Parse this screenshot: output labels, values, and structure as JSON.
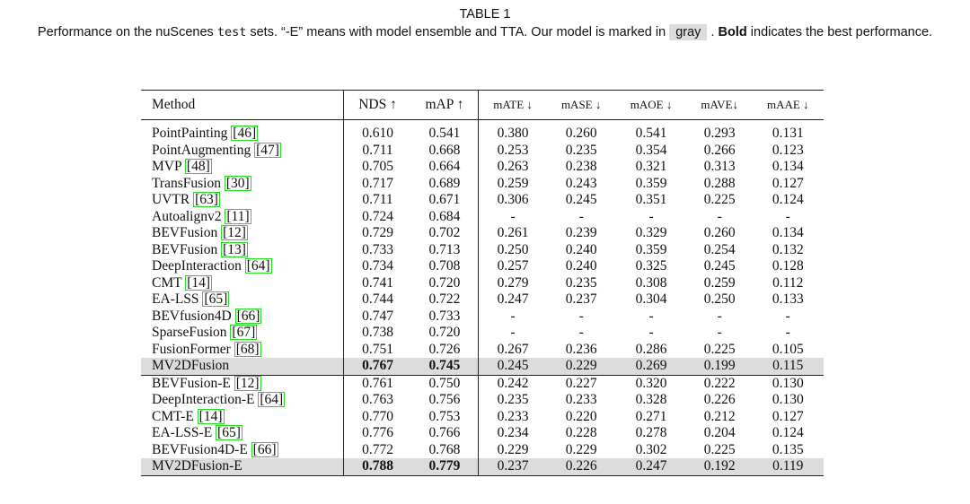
{
  "caption": {
    "title": "TABLE 1",
    "text_before_test": "Performance on the nuScenes ",
    "test_word": "test",
    "text_after_test": " sets. “-E” means with model ensemble and TTA. Our model is marked in ",
    "gray_word": "gray",
    "text_after_gray": " . ",
    "bold_word": "Bold",
    "text_end": " indicates the best performance."
  },
  "table": {
    "headers": [
      "Method",
      "NDS ↑",
      "mAP ↑",
      "mATE ↓",
      "mASE ↓",
      "mAOE ↓",
      "mAVE↓",
      "mAAE ↓"
    ],
    "group1": [
      {
        "name": "PointPainting ",
        "ref": "[46]",
        "values": [
          "0.610",
          "0.541",
          "0.380",
          "0.260",
          "0.541",
          "0.293",
          "0.131"
        ]
      },
      {
        "name": "PointAugmenting ",
        "ref": "[47]",
        "values": [
          "0.711",
          "0.668",
          "0.253",
          "0.235",
          "0.354",
          "0.266",
          "0.123"
        ]
      },
      {
        "name": "MVP ",
        "ref": "[48]",
        "values": [
          "0.705",
          "0.664",
          "0.263",
          "0.238",
          "0.321",
          "0.313",
          "0.134"
        ]
      },
      {
        "name": "TransFusion ",
        "ref": "[30]",
        "values": [
          "0.717",
          "0.689",
          "0.259",
          "0.243",
          "0.359",
          "0.288",
          "0.127"
        ]
      },
      {
        "name": "UVTR ",
        "ref": "[63]",
        "values": [
          "0.711",
          "0.671",
          "0.306",
          "0.245",
          "0.351",
          "0.225",
          "0.124"
        ]
      },
      {
        "name": "Autoalignv2 ",
        "ref": "[11]",
        "values": [
          "0.724",
          "0.684",
          "-",
          "-",
          "-",
          "-",
          "-"
        ]
      },
      {
        "name": "BEVFusion ",
        "ref": "[12]",
        "values": [
          "0.729",
          "0.702",
          "0.261",
          "0.239",
          "0.329",
          "0.260",
          "0.134"
        ]
      },
      {
        "name": "BEVFusion ",
        "ref": "[13]",
        "values": [
          "0.733",
          "0.713",
          "0.250",
          "0.240",
          "0.359",
          "0.254",
          "0.132"
        ]
      },
      {
        "name": "DeepInteraction ",
        "ref": "[64]",
        "values": [
          "0.734",
          "0.708",
          "0.257",
          "0.240",
          "0.325",
          "0.245",
          "0.128"
        ]
      },
      {
        "name": "CMT ",
        "ref": "[14]",
        "values": [
          "0.741",
          "0.720",
          "0.279",
          "0.235",
          "0.308",
          "0.259",
          "0.112"
        ]
      },
      {
        "name": "EA-LSS ",
        "ref": "[65]",
        "values": [
          "0.744",
          "0.722",
          "0.247",
          "0.237",
          "0.304",
          "0.250",
          "0.133"
        ]
      },
      {
        "name": "BEVfusion4D ",
        "ref": "[66]",
        "values": [
          "0.747",
          "0.733",
          "-",
          "-",
          "-",
          "-",
          "-"
        ]
      },
      {
        "name": "SparseFusion ",
        "ref": "[67]",
        "values": [
          "0.738",
          "0.720",
          "-",
          "-",
          "-",
          "-",
          "-"
        ]
      },
      {
        "name": "FusionFormer ",
        "ref": "[68]",
        "values": [
          "0.751",
          "0.726",
          "0.267",
          "0.236",
          "0.286",
          "0.225",
          "0.105"
        ]
      },
      {
        "name": "MV2DFusion",
        "ref": "",
        "values": [
          "0.767",
          "0.745",
          "0.245",
          "0.229",
          "0.269",
          "0.199",
          "0.115"
        ],
        "highlight": true,
        "bold_cols": [
          0,
          1
        ]
      }
    ],
    "group2": [
      {
        "name": "BEVFusion-E ",
        "ref": "[12]",
        "values": [
          "0.761",
          "0.750",
          "0.242",
          "0.227",
          "0.320",
          "0.222",
          "0.130"
        ]
      },
      {
        "name": "DeepInteraction-E ",
        "ref": "[64]",
        "values": [
          "0.763",
          "0.756",
          "0.235",
          "0.233",
          "0.328",
          "0.226",
          "0.130"
        ]
      },
      {
        "name": "CMT-E ",
        "ref": "[14]",
        "values": [
          "0.770",
          "0.753",
          "0.233",
          "0.220",
          "0.271",
          "0.212",
          "0.127"
        ]
      },
      {
        "name": "EA-LSS-E ",
        "ref": "[65]",
        "values": [
          "0.776",
          "0.766",
          "0.234",
          "0.228",
          "0.278",
          "0.204",
          "0.124"
        ]
      },
      {
        "name": "BEVFusion4D-E ",
        "ref": "[66]",
        "values": [
          "0.772",
          "0.768",
          "0.229",
          "0.229",
          "0.302",
          "0.225",
          "0.135"
        ]
      },
      {
        "name": "MV2DFusion-E",
        "ref": "",
        "values": [
          "0.788",
          "0.779",
          "0.237",
          "0.226",
          "0.247",
          "0.192",
          "0.119"
        ],
        "highlight": true,
        "bold_cols": [
          0,
          1
        ]
      }
    ]
  }
}
